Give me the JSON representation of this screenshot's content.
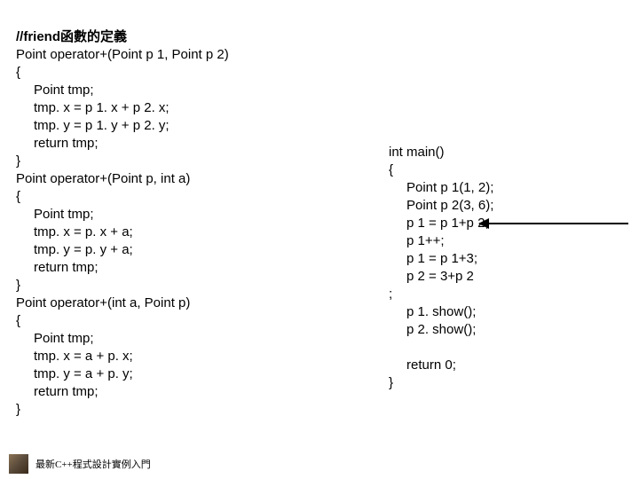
{
  "code_left": {
    "title": "//friend函數的定義",
    "func1_sig": "Point operator+(Point p 1, Point p 2)",
    "open": "{",
    "f1_l1": "Point tmp;",
    "f1_l2": "tmp. x = p 1. x + p 2. x;",
    "f1_l3": "tmp. y = p 1. y + p 2. y;",
    "f1_l4": "return tmp;",
    "close": "}",
    "func2_sig": "Point operator+(Point p, int a)",
    "f2_l1": "Point tmp;",
    "f2_l2": "tmp. x = p. x + a;",
    "f2_l3": "tmp. y = p. y + a;",
    "f2_l4": "return tmp;",
    "func3_sig": "Point operator+(int a, Point p)",
    "f3_l1": "Point tmp;",
    "f3_l2": "tmp. x = a + p. x;",
    "f3_l3": "tmp. y = a + p. y;",
    "f3_l4": "return tmp;"
  },
  "code_right": {
    "main_sig": "int main()",
    "open": "{",
    "m1": "Point p 1(1, 2);",
    "m2": "Point p 2(3, 6);",
    "m3": "p 1 = p 1+p 2;",
    "m4": "p 1++;",
    "m5": "p 1 = p 1+3;",
    "m6": "p 2 = 3+p 2",
    "m6b": ";",
    "m7": "p 1. show();",
    "m8": "p 2. show();",
    "m9": "return 0;",
    "close": "}"
  },
  "footer": {
    "text": "最新C++程式設計實例入門"
  },
  "colors": {
    "background": "#ffffff",
    "text": "#000000",
    "arrow": "#000000"
  },
  "typography": {
    "code_fontsize": 15,
    "code_lineheight": 20,
    "footer_fontsize": 11
  }
}
